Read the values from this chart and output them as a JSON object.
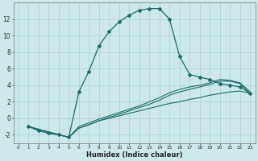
{
  "xlabel": "Humidex (Indice chaleur)",
  "background_color": "#cce8ea",
  "grid_color": "#aacfd2",
  "line_color": "#1a6e6a",
  "ylim": [
    -3,
    14
  ],
  "xlim": [
    -0.5,
    23.5
  ],
  "yticks": [
    -2,
    0,
    2,
    4,
    6,
    8,
    10,
    12
  ],
  "xticks": [
    0,
    1,
    2,
    3,
    4,
    5,
    6,
    7,
    8,
    9,
    10,
    11,
    12,
    13,
    14,
    15,
    16,
    17,
    18,
    19,
    20,
    21,
    22,
    23
  ],
  "xtick_labels": [
    "0",
    "1",
    "2",
    "3",
    "4",
    "5",
    "6",
    "7",
    "8",
    "9",
    "10",
    "11",
    "12",
    "13",
    "14",
    "15",
    "16",
    "17",
    "18",
    "19",
    "20",
    "21",
    "22",
    "23"
  ],
  "curve1_x": [
    1,
    2,
    3,
    4,
    5,
    6,
    7,
    8,
    9,
    10,
    11,
    12,
    13,
    14,
    15,
    16,
    17,
    18,
    19,
    20,
    21,
    22,
    23
  ],
  "curve1_y": [
    -1.0,
    -1.5,
    -1.8,
    -2.0,
    -2.3,
    3.2,
    5.7,
    8.8,
    10.5,
    11.7,
    12.5,
    13.1,
    13.3,
    13.3,
    12.0,
    7.5,
    5.3,
    5.0,
    4.7,
    4.2,
    4.0,
    3.8,
    3.0
  ],
  "curve2_x": [
    1,
    2,
    3,
    4,
    5,
    6,
    7,
    8,
    9,
    10,
    11,
    12,
    13,
    14,
    15,
    16,
    17,
    18,
    19,
    20,
    21,
    22,
    23
  ],
  "curve2_y": [
    -1.0,
    -1.5,
    -1.8,
    -2.0,
    -2.3,
    -1.2,
    -0.8,
    -0.3,
    0.0,
    0.3,
    0.6,
    0.9,
    1.2,
    1.5,
    1.8,
    2.0,
    2.3,
    2.5,
    2.8,
    3.0,
    3.2,
    3.3,
    3.0
  ],
  "curve3_x": [
    1,
    5,
    6,
    8,
    9,
    10,
    11,
    12,
    13,
    14,
    15,
    16,
    17,
    18,
    19,
    20,
    21,
    22,
    23
  ],
  "curve3_y": [
    -1.0,
    -2.3,
    -1.2,
    -0.3,
    0.1,
    0.5,
    0.9,
    1.3,
    1.7,
    2.2,
    2.8,
    3.2,
    3.5,
    3.8,
    4.1,
    4.5,
    4.5,
    4.2,
    3.0
  ],
  "curve4_x": [
    1,
    5,
    6,
    8,
    9,
    10,
    11,
    12,
    13,
    14,
    15,
    16,
    17,
    18,
    19,
    20,
    21,
    22,
    23
  ],
  "curve4_y": [
    -1.0,
    -2.3,
    -1.0,
    -0.1,
    0.3,
    0.7,
    1.1,
    1.5,
    2.0,
    2.5,
    3.1,
    3.5,
    3.8,
    4.0,
    4.3,
    4.7,
    4.6,
    4.3,
    3.2
  ]
}
